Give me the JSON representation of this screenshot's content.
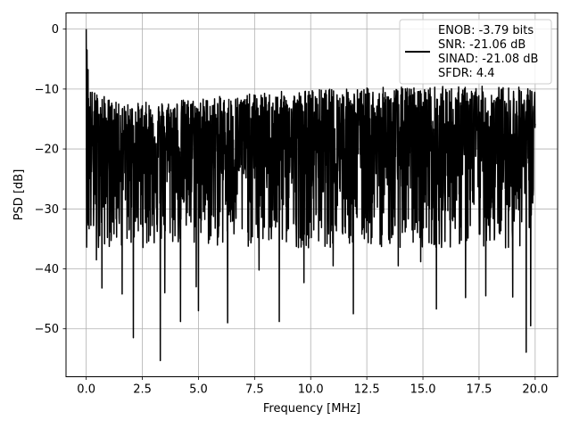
{
  "chart_data": {
    "type": "line",
    "xlabel": "Frequency [MHz]",
    "ylabel": "PSD [dB]",
    "xlim": [
      -0.9,
      21.0
    ],
    "ylim": [
      -58.0,
      2.7
    ],
    "xticks": [
      0.0,
      2.5,
      5.0,
      7.5,
      10.0,
      12.5,
      15.0,
      17.5,
      20.0
    ],
    "xtick_labels": [
      "0.0",
      "2.5",
      "5.0",
      "7.5",
      "10.0",
      "12.5",
      "15.0",
      "17.5",
      "20.0"
    ],
    "yticks": [
      0,
      -10,
      -20,
      -30,
      -40,
      -50
    ],
    "ytick_labels": [
      "0",
      "−10",
      "−20",
      "−30",
      "−40",
      "−50"
    ],
    "grid": true,
    "legend_position": "top-right",
    "legend_lines": [
      "ENOB: -3.79 bits",
      "SNR: -21.06 dB",
      "SINAD: -21.08 dB",
      "SFDR: 4.4"
    ],
    "series": [
      {
        "color": "#000000",
        "x_range": [
          0.0,
          20.0
        ],
        "peak": {
          "x": 0.0,
          "y": 0.0
        },
        "noise_floor_median": -19.5,
        "upper_envelope": [
          [
            0.0,
            0.0
          ],
          [
            0.2,
            -10.0
          ],
          [
            1.5,
            -12.5
          ],
          [
            5.0,
            -11.5
          ],
          [
            10.0,
            -10.0
          ],
          [
            15.0,
            -9.5
          ],
          [
            20.0,
            -9.5
          ]
        ],
        "deep_minima": [
          [
            0.45,
            -38.5
          ],
          [
            0.7,
            -43.2
          ],
          [
            1.6,
            -44.2
          ],
          [
            2.1,
            -51.5
          ],
          [
            3.3,
            -55.3
          ],
          [
            3.5,
            -44.0
          ],
          [
            4.2,
            -48.8
          ],
          [
            4.9,
            -43.0
          ],
          [
            5.0,
            -47.0
          ],
          [
            6.3,
            -49.0
          ],
          [
            7.7,
            -40.2
          ],
          [
            8.6,
            -48.8
          ],
          [
            9.7,
            -42.3
          ],
          [
            11.0,
            -39.5
          ],
          [
            11.9,
            -47.5
          ],
          [
            13.9,
            -39.5
          ],
          [
            14.9,
            -38.8
          ],
          [
            15.6,
            -46.7
          ],
          [
            16.9,
            -44.8
          ],
          [
            17.8,
            -44.5
          ],
          [
            19.0,
            -44.7
          ],
          [
            19.6,
            -53.9
          ],
          [
            19.8,
            -49.5
          ]
        ]
      }
    ]
  }
}
